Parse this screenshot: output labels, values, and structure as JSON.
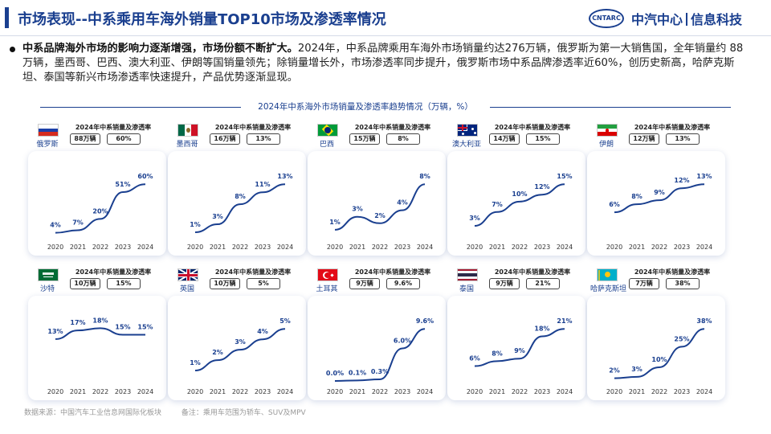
{
  "header": {
    "title": "市场表现--中系乘用车海外销量TOP10市场及渗透率情况",
    "logo_text": "CNTARC",
    "brand_left": "中汽中心",
    "brand_right": "信息科技"
  },
  "summary": {
    "bold": "中系品牌海外市场的影响力逐渐增强，市场份额不断扩大。",
    "text": "2024年，中系品牌乘用车海外市场销量约达276万辆，俄罗斯为第一大销售国，全年销量约 88 万辆，墨西哥、巴西、澳大利亚、伊朗等国销量领先；除销量增长外，市场渗透率同步提升，俄罗斯市场中系品牌渗透率近60%，创历史新高，哈萨克斯坦、泰国等新兴市场渗透率快速提升，产品优势逐渐显现。"
  },
  "section_title": "2024年中系海外市场销量及渗透率趋势情况（万辆，%）",
  "card_metric_title": "2024年中系销量及渗透率",
  "footer": {
    "source": "数据来源：中国汽车工业信息网国际化板块",
    "note": "备注：乘用车范围为轿车、SUV及MPV"
  },
  "colors": {
    "primary": "#1a3f8f",
    "line": "#1a3f8f"
  },
  "chart_data": [
    {
      "type": "line",
      "country": "俄罗斯",
      "sales": "88万辆",
      "rate": "60%",
      "x": [
        "2020",
        "2021",
        "2022",
        "2023",
        "2024"
      ],
      "values": [
        4,
        7,
        20,
        51,
        60
      ],
      "labels": [
        "4%",
        "7%",
        "20%",
        "51%",
        "60%"
      ]
    },
    {
      "type": "line",
      "country": "墨西哥",
      "sales": "16万辆",
      "rate": "13%",
      "x": [
        "2020",
        "2021",
        "2022",
        "2023",
        "2024"
      ],
      "values": [
        1,
        3,
        8,
        11,
        13
      ],
      "labels": [
        "1%",
        "3%",
        "8%",
        "11%",
        "13%"
      ]
    },
    {
      "type": "line",
      "country": "巴西",
      "sales": "15万辆",
      "rate": "8%",
      "x": [
        "2020",
        "2021",
        "2022",
        "2023",
        "2024"
      ],
      "values": [
        1,
        3,
        2,
        4,
        8
      ],
      "labels": [
        "1%",
        "3%",
        "2%",
        "4%",
        "8%"
      ]
    },
    {
      "type": "line",
      "country": "澳大利亚",
      "sales": "14万辆",
      "rate": "15%",
      "x": [
        "2020",
        "2021",
        "2022",
        "2023",
        "2024"
      ],
      "values": [
        3,
        7,
        10,
        12,
        15
      ],
      "labels": [
        "3%",
        "7%",
        "10%",
        "12%",
        "15%"
      ]
    },
    {
      "type": "line",
      "country": "伊朗",
      "sales": "12万辆",
      "rate": "13%",
      "x": [
        "2020",
        "2021",
        "2022",
        "2023",
        "2024"
      ],
      "values": [
        6,
        8,
        9,
        12,
        13
      ],
      "labels": [
        "6%",
        "8%",
        "9%",
        "12%",
        "13%"
      ]
    },
    {
      "type": "line",
      "country": "沙特",
      "sales": "10万辆",
      "rate": "15%",
      "x": [
        "2020",
        "2021",
        "2022",
        "2023",
        "2024"
      ],
      "values": [
        13,
        17,
        18,
        15,
        15
      ],
      "labels": [
        "13%",
        "17%",
        "18%",
        "15%",
        "15%"
      ]
    },
    {
      "type": "line",
      "country": "英国",
      "sales": "10万辆",
      "rate": "5%",
      "x": [
        "2020",
        "2021",
        "2022",
        "2023",
        "2024"
      ],
      "values": [
        1,
        2,
        3,
        4,
        5
      ],
      "labels": [
        "1%",
        "2%",
        "3%",
        "4%",
        "5%"
      ]
    },
    {
      "type": "line",
      "country": "土耳其",
      "sales": "9万辆",
      "rate": "9.6%",
      "x": [
        "2020",
        "2021",
        "2022",
        "2023",
        "2024"
      ],
      "values": [
        0.0,
        0.1,
        0.3,
        6.0,
        9.6
      ],
      "labels": [
        "0.0%",
        "0.1%",
        "0.3%",
        "6.0%",
        "9.6%"
      ]
    },
    {
      "type": "line",
      "country": "泰国",
      "sales": "9万辆",
      "rate": "21%",
      "x": [
        "2020",
        "2021",
        "2022",
        "2023",
        "2024"
      ],
      "values": [
        6,
        8,
        9,
        18,
        21
      ],
      "labels": [
        "6%",
        "8%",
        "9%",
        "18%",
        "21%"
      ]
    },
    {
      "type": "line",
      "country": "哈萨克斯坦",
      "sales": "7万辆",
      "rate": "38%",
      "x": [
        "2020",
        "2021",
        "2022",
        "2023",
        "2024"
      ],
      "values": [
        2,
        3,
        10,
        25,
        38
      ],
      "labels": [
        "2%",
        "3%",
        "10%",
        "25%",
        "38%"
      ]
    }
  ],
  "flags": [
    "russia-flag-icon",
    "mexico-flag-icon",
    "brazil-flag-icon",
    "australia-flag-icon",
    "iran-flag-icon",
    "saudi-flag-icon",
    "uk-flag-icon",
    "turkey-flag-icon",
    "thailand-flag-icon",
    "kazakhstan-flag-icon"
  ]
}
